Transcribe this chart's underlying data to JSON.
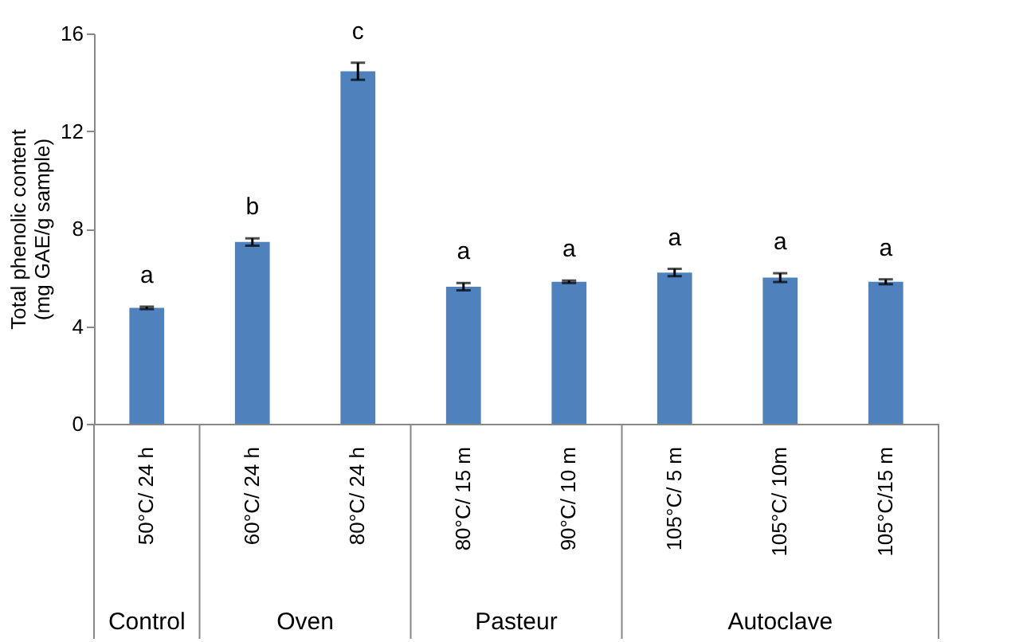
{
  "chart_data": {
    "type": "bar",
    "ylabel": "Total phenolic content\n(mg GAE/g sample)",
    "categories": [
      "50°C/ 24 h",
      "60°C/ 24 h",
      "80°C/ 24 h",
      "80°C/ 15 m",
      "90°C/ 10 m",
      "105°C/ 5 m",
      "105°C/ 10m",
      "105°C/15 m"
    ],
    "values": [
      4.75,
      7.45,
      14.45,
      5.62,
      5.82,
      6.2,
      5.99,
      5.82
    ],
    "errors": [
      0.05,
      0.15,
      0.35,
      0.15,
      0.05,
      0.15,
      0.18,
      0.1
    ],
    "color": "#4f81bd",
    "ylim": [
      0,
      16
    ],
    "yticks": [
      0,
      4,
      8,
      12,
      16
    ],
    "grid": false,
    "annotations": [
      {
        "text": "a",
        "x": "50°C/ 24 h",
        "y": 4.75
      },
      {
        "text": "b",
        "x": "60°C/ 24 h",
        "y": 7.45
      },
      {
        "text": "c",
        "x": "80°C/ 24 h",
        "y": 14.45
      },
      {
        "text": "a",
        "x": "80°C/ 15 m",
        "y": 5.62
      },
      {
        "text": "a",
        "x": "90°C/ 10 m",
        "y": 5.82
      },
      {
        "text": "a",
        "x": "105°C/ 5 m",
        "y": 6.2
      },
      {
        "text": "a",
        "x": "105°C/ 10m",
        "y": 5.99
      },
      {
        "text": "a",
        "x": "105°C/15 m",
        "y": 5.82
      },
      "Control",
      "Oven",
      "Pasteur",
      "Autoclave"
    ]
  }
}
